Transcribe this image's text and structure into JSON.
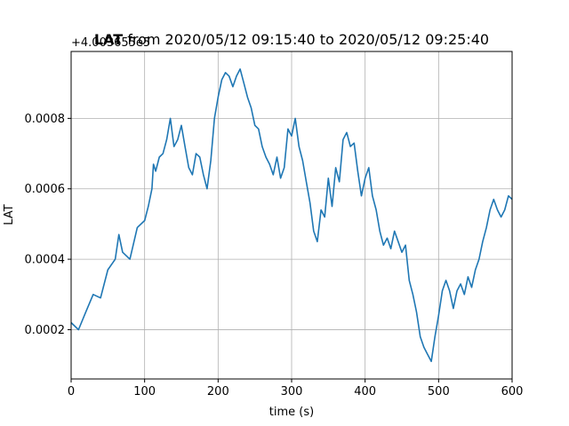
{
  "chart_data": {
    "type": "line",
    "title": "LAT from 2020/05/12 09:15:40 to 2020/05/12 09:25:40",
    "title_bold_part": "LAT",
    "title_rest": " from 2020/05/12 09:15:40 to 2020/05/12 09:25:40",
    "xlabel": "time (s)",
    "ylabel": "LAT",
    "y_offset_label": "+4.003655e5",
    "xlim": [
      0,
      600
    ],
    "ylim": [
      6e-05,
      0.00099
    ],
    "xticks": [
      0,
      100,
      200,
      300,
      400,
      500,
      600
    ],
    "xtick_labels": [
      "0",
      "100",
      "200",
      "300",
      "400",
      "500",
      "600"
    ],
    "yticks": [
      0.0002,
      0.0004,
      0.0006,
      0.0008
    ],
    "ytick_labels": [
      "0.0002",
      "0.0004",
      "0.0006",
      "0.0008"
    ],
    "grid": true,
    "series": [
      {
        "color": "#1f77b4",
        "x": [
          0,
          10,
          20,
          30,
          40,
          50,
          60,
          65,
          70,
          80,
          90,
          100,
          105,
          110,
          112,
          115,
          120,
          125,
          130,
          135,
          140,
          145,
          150,
          155,
          160,
          165,
          170,
          175,
          180,
          185,
          190,
          195,
          200,
          205,
          210,
          215,
          220,
          225,
          230,
          235,
          240,
          245,
          250,
          255,
          260,
          265,
          270,
          275,
          280,
          285,
          290,
          295,
          300,
          305,
          310,
          315,
          320,
          325,
          330,
          335,
          340,
          345,
          350,
          355,
          360,
          365,
          370,
          375,
          380,
          385,
          390,
          395,
          400,
          405,
          410,
          415,
          420,
          425,
          430,
          435,
          440,
          445,
          450,
          455,
          460,
          465,
          470,
          475,
          480,
          485,
          490,
          495,
          500,
          505,
          510,
          515,
          520,
          525,
          530,
          535,
          540,
          545,
          550,
          555,
          560,
          565,
          570,
          575,
          580,
          585,
          590,
          595,
          600
        ],
        "values": [
          0.00022,
          0.0002,
          0.00025,
          0.0003,
          0.00029,
          0.00037,
          0.0004,
          0.00047,
          0.00042,
          0.0004,
          0.00049,
          0.00051,
          0.00055,
          0.0006,
          0.00067,
          0.00065,
          0.00069,
          0.0007,
          0.00074,
          0.0008,
          0.00072,
          0.00074,
          0.00078,
          0.00072,
          0.00066,
          0.00064,
          0.0007,
          0.00069,
          0.00064,
          0.0006,
          0.00068,
          0.0008,
          0.00086,
          0.00091,
          0.00093,
          0.00092,
          0.00089,
          0.00092,
          0.00094,
          0.0009,
          0.00086,
          0.00083,
          0.00078,
          0.00077,
          0.00072,
          0.00069,
          0.00067,
          0.00064,
          0.00069,
          0.00063,
          0.00066,
          0.00077,
          0.00075,
          0.0008,
          0.00072,
          0.00068,
          0.00062,
          0.00056,
          0.00048,
          0.00045,
          0.00054,
          0.00052,
          0.00063,
          0.00055,
          0.00066,
          0.00062,
          0.00074,
          0.00076,
          0.00072,
          0.00073,
          0.00065,
          0.00058,
          0.00063,
          0.00066,
          0.00058,
          0.00054,
          0.00048,
          0.00044,
          0.00046,
          0.00043,
          0.00048,
          0.00045,
          0.00042,
          0.00044,
          0.00034,
          0.0003,
          0.00025,
          0.00018,
          0.00015,
          0.00013,
          0.00011,
          0.00018,
          0.00024,
          0.00031,
          0.00034,
          0.00031,
          0.00026,
          0.00031,
          0.00033,
          0.0003,
          0.00035,
          0.00032,
          0.00037,
          0.0004,
          0.00045,
          0.00049,
          0.00054,
          0.00057,
          0.00054,
          0.00052,
          0.00054,
          0.00058,
          0.00057
        ]
      }
    ]
  }
}
